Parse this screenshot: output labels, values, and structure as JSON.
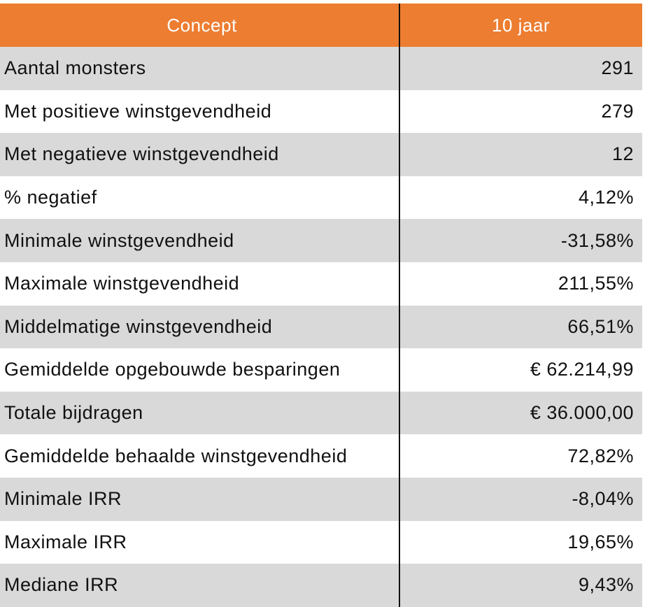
{
  "table": {
    "header": [
      "Concept",
      "10 jaar"
    ],
    "rows": [
      [
        "Aantal monsters",
        "291"
      ],
      [
        "Met positieve winstgevendheid",
        "279"
      ],
      [
        "Met negatieve winstgevendheid",
        "12"
      ],
      [
        "% negatief",
        "4,12%"
      ],
      [
        "Minimale winstgevendheid",
        "-31,58%"
      ],
      [
        "Maximale winstgevendheid",
        "211,55%"
      ],
      [
        "Middelmatige winstgevendheid",
        "66,51%"
      ],
      [
        "Gemiddelde opgebouwde besparingen",
        "€ 62.214,99"
      ],
      [
        "Totale bijdragen",
        "€ 36.000,00"
      ],
      [
        "Gemiddelde behaalde winstgevendheid",
        "72,82%"
      ],
      [
        "Minimale IRR",
        "-8,04%"
      ],
      [
        "Maximale IRR",
        "19,65%"
      ],
      [
        "Mediane IRR",
        "9,43%"
      ]
    ]
  }
}
